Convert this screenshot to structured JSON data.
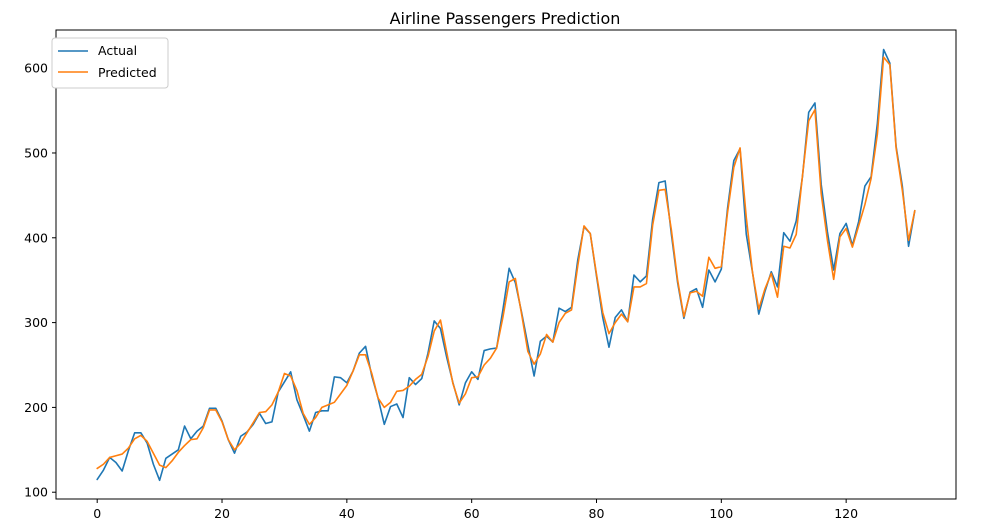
{
  "chart_data": {
    "type": "line",
    "title": "Airline Passengers Prediction",
    "xlabel": "",
    "ylabel": "",
    "xlim": [
      -6.6,
      137.6
    ],
    "ylim": [
      92,
      645
    ],
    "x_ticks": [
      "0",
      "20",
      "40",
      "60",
      "80",
      "100",
      "120"
    ],
    "y_ticks": [
      "100",
      "200",
      "300",
      "400",
      "500",
      "600"
    ],
    "grid": false,
    "legend_position": "top-left",
    "series": [
      {
        "name": "Actual",
        "color": "#1f77b4",
        "values": [
          115,
          126,
          141,
          135,
          125,
          149,
          170,
          170,
          158,
          133,
          114,
          140,
          145,
          150,
          178,
          163,
          172,
          178,
          199,
          199,
          184,
          162,
          146,
          166,
          171,
          180,
          193,
          181,
          183,
          218,
          230,
          242,
          209,
          191,
          172,
          194,
          196,
          196,
          236,
          235,
          229,
          243,
          264,
          272,
          237,
          211,
          180,
          201,
          204,
          188,
          235,
          227,
          234,
          264,
          302,
          293,
          259,
          229,
          203,
          229,
          242,
          233,
          267,
          269,
          270,
          315,
          364,
          347,
          312,
          274,
          237,
          278,
          284,
          277,
          317,
          313,
          318,
          374,
          413,
          405,
          355,
          306,
          271,
          306,
          315,
          301,
          356,
          348,
          355,
          422,
          465,
          467,
          404,
          347,
          305,
          336,
          340,
          318,
          362,
          348,
          363,
          435,
          491,
          505,
          404,
          359,
          310,
          337,
          360,
          342,
          406,
          396,
          420,
          472,
          548,
          559,
          463,
          407,
          362,
          405,
          417,
          391,
          419,
          461,
          472,
          535,
          622,
          606,
          508,
          461,
          390,
          432
        ]
      },
      {
        "name": "Predicted",
        "color": "#ff7f0e",
        "values": [
          128,
          133,
          141,
          143,
          145,
          152,
          163,
          167,
          160,
          146,
          132,
          129,
          137,
          147,
          155,
          162,
          163,
          176,
          197,
          197,
          183,
          162,
          150,
          158,
          170,
          182,
          194,
          195,
          203,
          218,
          240,
          237,
          220,
          193,
          180,
          188,
          200,
          203,
          206,
          216,
          226,
          243,
          262,
          262,
          240,
          211,
          200,
          206,
          219,
          220,
          225,
          233,
          239,
          260,
          290,
          303,
          265,
          228,
          205,
          216,
          235,
          236,
          250,
          258,
          270,
          306,
          348,
          352,
          310,
          266,
          251,
          263,
          286,
          277,
          300,
          311,
          315,
          367,
          414,
          405,
          357,
          312,
          287,
          300,
          310,
          301,
          342,
          342,
          346,
          415,
          456,
          457,
          409,
          350,
          307,
          335,
          337,
          331,
          377,
          364,
          366,
          430,
          483,
          506,
          424,
          359,
          316,
          340,
          358,
          330,
          390,
          388,
          404,
          473,
          538,
          551,
          452,
          397,
          351,
          401,
          411,
          389,
          414,
          439,
          470,
          522,
          613,
          604,
          506,
          456,
          397,
          432
        ]
      }
    ]
  }
}
